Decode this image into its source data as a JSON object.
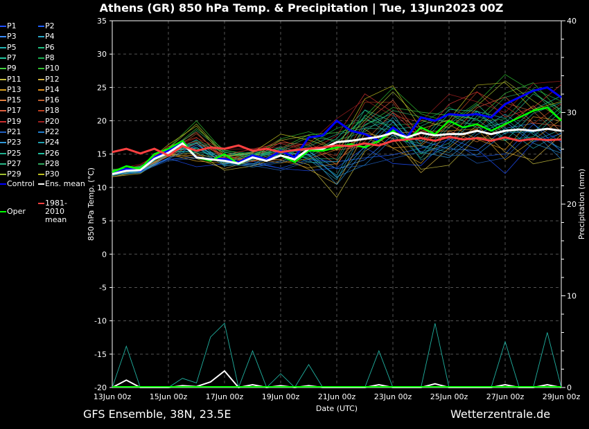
{
  "header": {
    "title": "Athens  (GR)  850 hPa Temp. & Precipitation | Tue, 13Jun2023 00Z"
  },
  "footer": {
    "left": "GFS Ensemble, 38N, 23.5E",
    "right": "Wetterzentrale.de"
  },
  "chart_data": {
    "type": "line",
    "title": "Athens  (GR)  850 hPa Temp. & Precipitation | Tue, 13Jun2023 00Z",
    "xlabel": "Date (UTC)",
    "ylabel": "850 hPa Temp. (°C)",
    "y2label": "Precipitation (mm)",
    "ylim": [
      -20,
      35
    ],
    "y2lim": [
      0,
      40
    ],
    "yticks": [
      "35",
      "30",
      "25",
      "20",
      "15",
      "10",
      "5",
      "0",
      "-5",
      "-10",
      "-15",
      "-20"
    ],
    "y2ticks": [
      "40",
      "30",
      "20",
      "10",
      "0"
    ],
    "xticks": [
      "13Jun 00z",
      "15Jun 00z",
      "17Jun 00z",
      "19Jun 00z",
      "21Jun 00z",
      "23Jun 00z",
      "25Jun 00z",
      "27Jun 00z",
      "29Jun 00z"
    ],
    "x_range_hours": [
      0,
      384
    ],
    "grid": true,
    "legend_position": "left",
    "legend": [
      {
        "label": "P1",
        "color": "#1e4fff"
      },
      {
        "label": "P2",
        "color": "#1e60ff"
      },
      {
        "label": "P3",
        "color": "#3a8cff"
      },
      {
        "label": "P4",
        "color": "#2aa6c8"
      },
      {
        "label": "P5",
        "color": "#22b4b4"
      },
      {
        "label": "P6",
        "color": "#20c080"
      },
      {
        "label": "P7",
        "color": "#20c8a0"
      },
      {
        "label": "P8",
        "color": "#18b050"
      },
      {
        "label": "P9",
        "color": "#40d040"
      },
      {
        "label": "P10",
        "color": "#30c030"
      },
      {
        "label": "P11",
        "color": "#c8c040"
      },
      {
        "label": "P12",
        "color": "#d0b040"
      },
      {
        "label": "P13",
        "color": "#d8a020"
      },
      {
        "label": "P14",
        "color": "#e09020"
      },
      {
        "label": "P15",
        "color": "#e08040"
      },
      {
        "label": "P16",
        "color": "#c06030"
      },
      {
        "label": "P17",
        "color": "#e06040"
      },
      {
        "label": "P18",
        "color": "#c04020"
      },
      {
        "label": "P19",
        "color": "#d03030"
      },
      {
        "label": "P20",
        "color": "#a02020"
      },
      {
        "label": "P21",
        "color": "#2060c0"
      },
      {
        "label": "P22",
        "color": "#2080d0"
      },
      {
        "label": "P23",
        "color": "#3098d8"
      },
      {
        "label": "P24",
        "color": "#20a0b0"
      },
      {
        "label": "P25",
        "color": "#20b090"
      },
      {
        "label": "P26",
        "color": "#20c0a0"
      },
      {
        "label": "P27",
        "color": "#28b888"
      },
      {
        "label": "P28",
        "color": "#30a860"
      },
      {
        "label": "P29",
        "color": "#a0c030"
      },
      {
        "label": "P30",
        "color": "#c0c020"
      },
      {
        "label": "Control",
        "color": "#0000ff"
      },
      {
        "label": "Ens. mean",
        "color": "#ffffff"
      },
      {
        "label": "1981-2010 mean",
        "color": "#ff4040"
      },
      {
        "label": "Oper",
        "color": "#00ff00"
      }
    ],
    "series": [
      {
        "name": "Control",
        "color": "#0000ff",
        "hours": [
          0,
          12,
          24,
          36,
          48,
          60,
          72,
          84,
          96,
          108,
          120,
          132,
          144,
          156,
          168,
          180,
          192,
          204,
          216,
          228,
          240,
          252,
          264,
          276,
          288,
          300,
          312,
          324,
          336,
          348,
          360,
          372,
          384
        ],
        "values": [
          12.0,
          12.8,
          12.5,
          14.5,
          15.5,
          17.0,
          14.5,
          14.2,
          14.3,
          13.8,
          14.8,
          14.2,
          15.5,
          14.5,
          17.5,
          17.8,
          20.0,
          18.5,
          18.0,
          17.0,
          19.0,
          17.5,
          20.5,
          20.0,
          21.0,
          20.8,
          21.0,
          20.5,
          22.5,
          23.5,
          24.5,
          25.0,
          23.5
        ]
      },
      {
        "name": "Oper",
        "color": "#00ff00",
        "hours": [
          0,
          12,
          24,
          36,
          48,
          60,
          72,
          84,
          96,
          108,
          120,
          132,
          144,
          156,
          168,
          180,
          192,
          204,
          216,
          228,
          240,
          252,
          264,
          276,
          288,
          300,
          312,
          324,
          336,
          348,
          360,
          372,
          384
        ],
        "values": [
          12.3,
          13.2,
          12.8,
          15.0,
          15.8,
          17.0,
          14.5,
          14.0,
          15.0,
          13.5,
          14.5,
          14.0,
          14.8,
          13.8,
          15.5,
          15.5,
          16.0,
          16.5,
          16.0,
          17.0,
          18.5,
          17.0,
          19.0,
          18.0,
          20.0,
          19.0,
          19.5,
          18.5,
          19.5,
          20.5,
          21.5,
          22.0,
          20.0
        ]
      },
      {
        "name": "Ens. mean",
        "color": "#ffffff",
        "hours": [
          0,
          12,
          24,
          36,
          48,
          60,
          72,
          84,
          96,
          108,
          120,
          132,
          144,
          156,
          168,
          180,
          192,
          204,
          216,
          228,
          240,
          252,
          264,
          276,
          288,
          300,
          312,
          324,
          336,
          348,
          360,
          372,
          384
        ],
        "values": [
          12.0,
          12.5,
          12.6,
          14.3,
          15.2,
          16.6,
          14.5,
          14.2,
          14.0,
          13.6,
          14.5,
          14.0,
          14.8,
          14.2,
          15.8,
          15.8,
          16.8,
          17.0,
          17.3,
          17.6,
          18.2,
          17.5,
          18.2,
          17.8,
          18.0,
          18.0,
          18.5,
          18.0,
          18.5,
          18.7,
          18.5,
          18.8,
          18.5
        ]
      },
      {
        "name": "1981-2010 mean",
        "color": "#ff4040",
        "hours": [
          0,
          12,
          24,
          36,
          48,
          60,
          72,
          84,
          96,
          108,
          120,
          132,
          144,
          156,
          168,
          180,
          192,
          204,
          216,
          228,
          240,
          252,
          264,
          276,
          288,
          300,
          312,
          324,
          336,
          348,
          360,
          372,
          384
        ],
        "values": [
          15.3,
          15.8,
          15.1,
          15.8,
          14.8,
          16.2,
          15.5,
          16.0,
          15.8,
          16.3,
          15.5,
          15.8,
          15.3,
          15.6,
          15.8,
          16.0,
          16.3,
          16.2,
          16.6,
          16.3,
          17.0,
          17.2,
          17.4,
          17.0,
          17.6,
          17.2,
          17.4,
          17.0,
          17.5,
          17.0,
          17.3,
          17.1,
          17.2
        ]
      }
    ],
    "ensemble_spread": {
      "hours": [
        0,
        24,
        48,
        72,
        96,
        120,
        144,
        168,
        192,
        216,
        240,
        264,
        288,
        312,
        336,
        360,
        384
      ],
      "min": [
        11.5,
        12.0,
        14.0,
        13.0,
        12.5,
        12.8,
        12.5,
        12.0,
        8.5,
        12.5,
        13.5,
        11.5,
        13.0,
        13.5,
        12.0,
        13.0,
        13.0
      ],
      "max": [
        12.8,
        13.5,
        16.5,
        20.0,
        16.0,
        16.0,
        18.0,
        18.5,
        20.5,
        25.0,
        25.5,
        22.0,
        24.0,
        26.0,
        27.0,
        27.0,
        26.5
      ]
    },
    "precip_mm": {
      "hours": [
        0,
        12,
        24,
        36,
        48,
        60,
        72,
        84,
        96,
        108,
        120,
        132,
        144,
        156,
        168,
        180,
        192,
        204,
        216,
        228,
        240,
        252,
        264,
        276,
        288,
        300,
        312,
        324,
        336,
        348,
        360,
        372,
        384
      ],
      "max": [
        0,
        4.5,
        0,
        0,
        0,
        1.0,
        0.5,
        5.5,
        7.0,
        0,
        4.0,
        0,
        1.5,
        0,
        2.5,
        0,
        0,
        0,
        0,
        4.0,
        0,
        0,
        0,
        7.0,
        0,
        0,
        0,
        0,
        5.0,
        0,
        0,
        6.0,
        0
      ],
      "mean": [
        0,
        0.8,
        0,
        0,
        0,
        0.2,
        0.1,
        0.6,
        1.8,
        0,
        0.3,
        0,
        0.2,
        0,
        0.2,
        0,
        0,
        0,
        0,
        0.3,
        0,
        0,
        0,
        0.4,
        0,
        0,
        0,
        0,
        0.3,
        0,
        0,
        0.3,
        0
      ]
    }
  }
}
